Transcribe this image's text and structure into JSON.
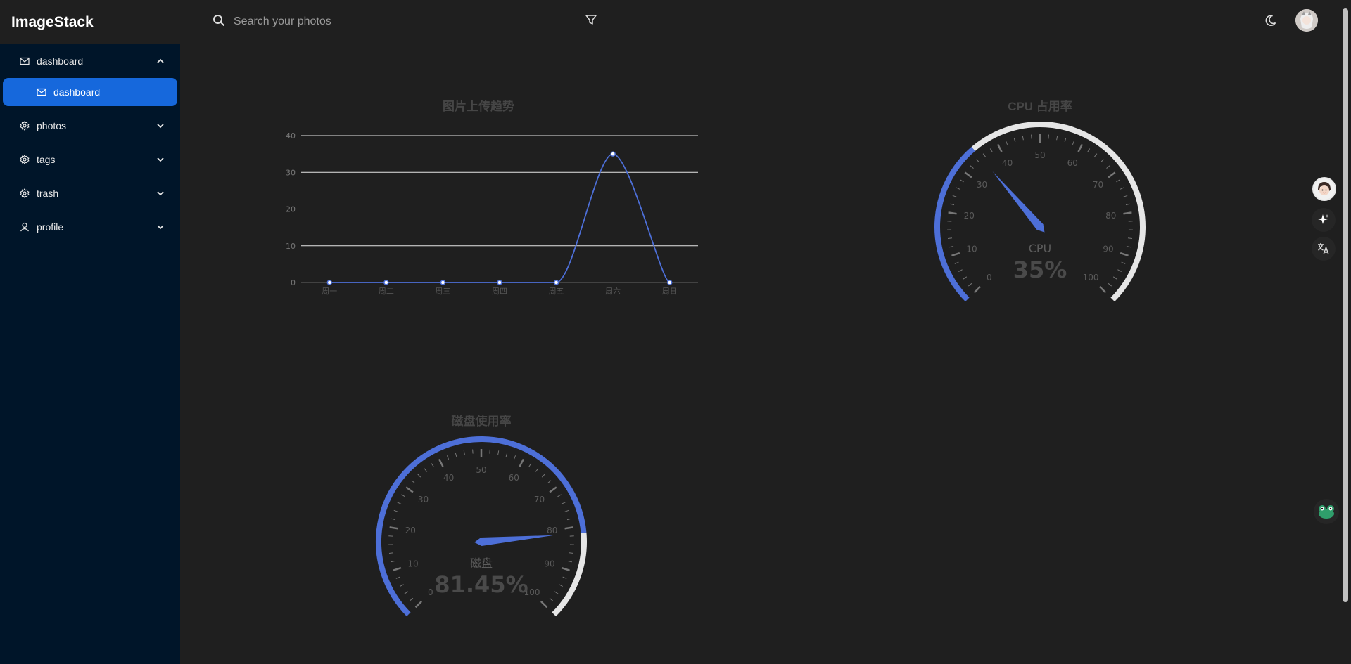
{
  "app": {
    "title": "ImageStack"
  },
  "search": {
    "placeholder": "Search your photos"
  },
  "sidebar": {
    "items": [
      {
        "label": "dashboard",
        "icon": "mail-icon",
        "expanded": true
      },
      {
        "label": "photos",
        "icon": "gear-icon",
        "expanded": false
      },
      {
        "label": "tags",
        "icon": "gear-icon",
        "expanded": false
      },
      {
        "label": "trash",
        "icon": "gear-icon",
        "expanded": false
      },
      {
        "label": "profile",
        "icon": "user-icon",
        "expanded": false
      }
    ],
    "sub_items": [
      {
        "label": "dashboard",
        "icon": "mail-icon",
        "selected": true
      }
    ]
  },
  "colors": {
    "accent": "#1668dc",
    "series": "#4d6fd8",
    "sidebar_bg": "#001529",
    "page_bg": "#1f1f1f"
  },
  "chart_data": [
    {
      "type": "line",
      "title": "图片上传趋势",
      "categories": [
        "周一",
        "周二",
        "周三",
        "周四",
        "周五",
        "周六",
        "周日"
      ],
      "values": [
        0,
        0,
        0,
        0,
        0,
        35,
        0
      ],
      "ylim": [
        0,
        40
      ],
      "yticks": [
        0,
        10,
        20,
        30,
        40
      ],
      "smooth": true
    },
    {
      "type": "gauge",
      "title": "CPU 占用率",
      "label": "CPU",
      "value": 35,
      "display": "35%",
      "min": 0,
      "max": 100,
      "ticks": [
        0,
        10,
        20,
        30,
        40,
        50,
        60,
        70,
        80,
        90,
        100
      ]
    },
    {
      "type": "gauge",
      "title": "磁盘使用率",
      "label": "磁盘",
      "value": 81.45,
      "display": "81.45%",
      "min": 0,
      "max": 100,
      "ticks": [
        0,
        10,
        20,
        30,
        40,
        50,
        60,
        70,
        80,
        90,
        100
      ]
    }
  ]
}
